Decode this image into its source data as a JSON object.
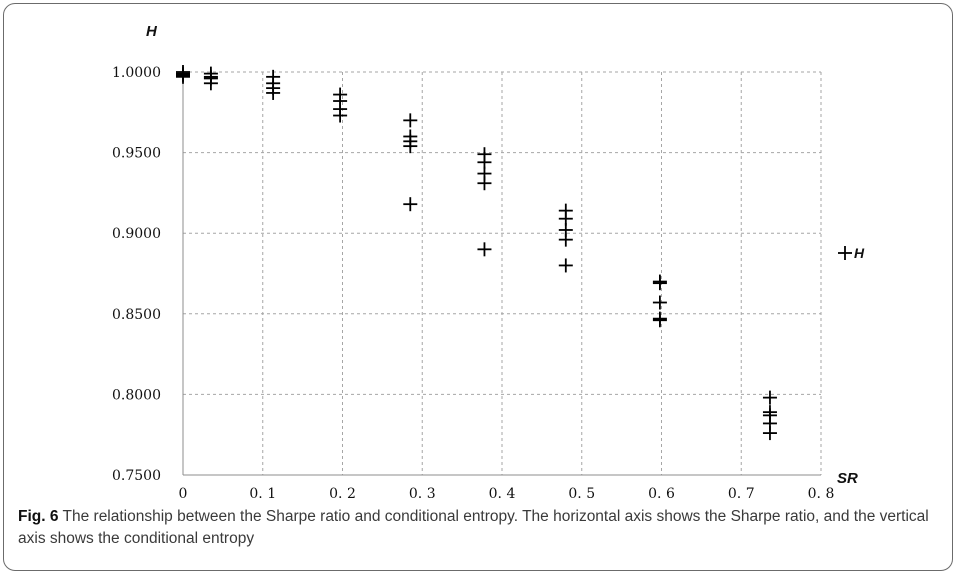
{
  "chart_data": {
    "type": "scatter",
    "title": "",
    "xlabel": "SR",
    "ylabel": "H",
    "xlim": [
      0,
      0.8
    ],
    "ylim": [
      0.75,
      1.0
    ],
    "x_ticks": [
      "0",
      "0. 1",
      "0. 2",
      "0. 3",
      "0. 4",
      "0. 5",
      "0. 6",
      "0. 7",
      "0. 8"
    ],
    "y_ticks": [
      "0.7500",
      "0.8000",
      "0.8500",
      "0.9000",
      "0.9500",
      "1.0000"
    ],
    "grid": true,
    "legend": {
      "position": "right",
      "entries": [
        "H"
      ],
      "marker": "+"
    },
    "series": [
      {
        "name": "H",
        "marker": "+",
        "color": "#000000",
        "points": [
          {
            "x": 0.0,
            "y": 1.0
          },
          {
            "x": 0.0,
            "y": 0.999
          },
          {
            "x": 0.0,
            "y": 0.998
          },
          {
            "x": 0.0,
            "y": 0.997
          },
          {
            "x": 0.035,
            "y": 0.999
          },
          {
            "x": 0.035,
            "y": 0.997
          },
          {
            "x": 0.035,
            "y": 0.996
          },
          {
            "x": 0.035,
            "y": 0.993
          },
          {
            "x": 0.113,
            "y": 0.997
          },
          {
            "x": 0.113,
            "y": 0.993
          },
          {
            "x": 0.113,
            "y": 0.99
          },
          {
            "x": 0.113,
            "y": 0.987
          },
          {
            "x": 0.197,
            "y": 0.986
          },
          {
            "x": 0.197,
            "y": 0.982
          },
          {
            "x": 0.197,
            "y": 0.977
          },
          {
            "x": 0.197,
            "y": 0.973
          },
          {
            "x": 0.285,
            "y": 0.97
          },
          {
            "x": 0.285,
            "y": 0.96
          },
          {
            "x": 0.285,
            "y": 0.957
          },
          {
            "x": 0.285,
            "y": 0.954
          },
          {
            "x": 0.285,
            "y": 0.918
          },
          {
            "x": 0.378,
            "y": 0.949
          },
          {
            "x": 0.378,
            "y": 0.944
          },
          {
            "x": 0.378,
            "y": 0.937
          },
          {
            "x": 0.378,
            "y": 0.931
          },
          {
            "x": 0.378,
            "y": 0.89
          },
          {
            "x": 0.48,
            "y": 0.914
          },
          {
            "x": 0.48,
            "y": 0.909
          },
          {
            "x": 0.48,
            "y": 0.902
          },
          {
            "x": 0.48,
            "y": 0.896
          },
          {
            "x": 0.48,
            "y": 0.88
          },
          {
            "x": 0.598,
            "y": 0.87
          },
          {
            "x": 0.598,
            "y": 0.869
          },
          {
            "x": 0.598,
            "y": 0.857
          },
          {
            "x": 0.598,
            "y": 0.847
          },
          {
            "x": 0.598,
            "y": 0.846
          },
          {
            "x": 0.736,
            "y": 0.798
          },
          {
            "x": 0.736,
            "y": 0.789
          },
          {
            "x": 0.736,
            "y": 0.787
          },
          {
            "x": 0.736,
            "y": 0.782
          },
          {
            "x": 0.736,
            "y": 0.776
          }
        ]
      }
    ]
  },
  "caption": {
    "label": "Fig. 6",
    "text": " The relationship between the Sharpe ratio and conditional entropy. The horizontal axis shows the Sharpe ratio, and the vertical axis shows the conditional entropy"
  }
}
